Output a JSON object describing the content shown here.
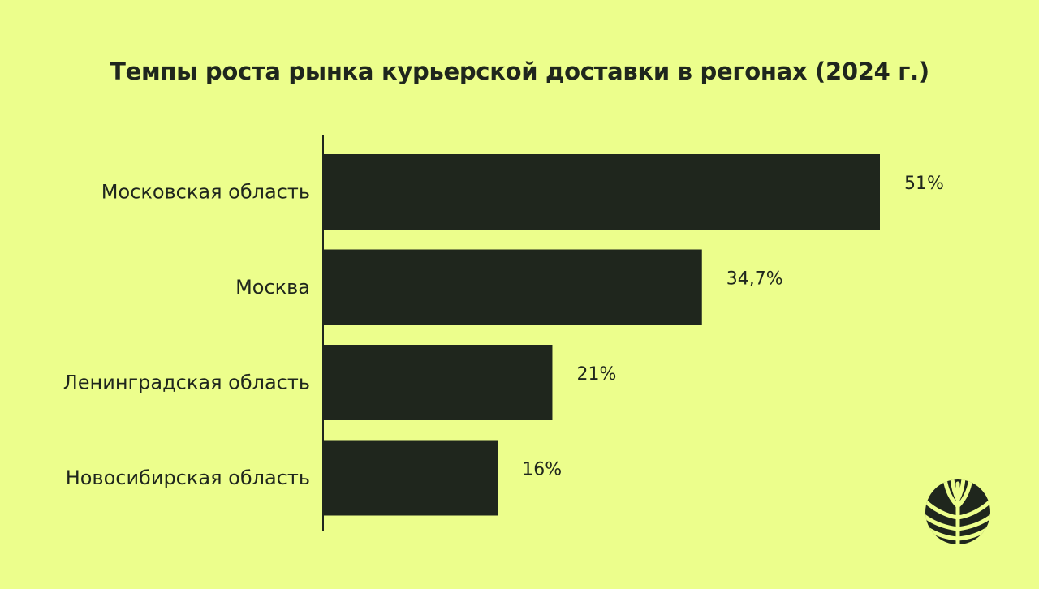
{
  "colors": {
    "background": "#ecfe8c",
    "bar": "#1f261d",
    "text": "#1f261d"
  },
  "logo": {
    "icon": "tree-canopy-icon"
  },
  "chart_data": {
    "type": "bar",
    "orientation": "horizontal",
    "title": "Темпы роста рынка курьерской доставки в регонах (2024 г.)",
    "categories": [
      "Московская область",
      "Москва",
      "Ленинградская область",
      "Новосибирская область"
    ],
    "values": [
      51,
      34.7,
      21,
      16
    ],
    "value_labels": [
      "51%",
      "34,7%",
      "21%",
      "16%"
    ],
    "unit": "%",
    "xlim": [
      0,
      51
    ],
    "xlabel": "",
    "ylabel": "",
    "grid": false,
    "legend": false
  }
}
